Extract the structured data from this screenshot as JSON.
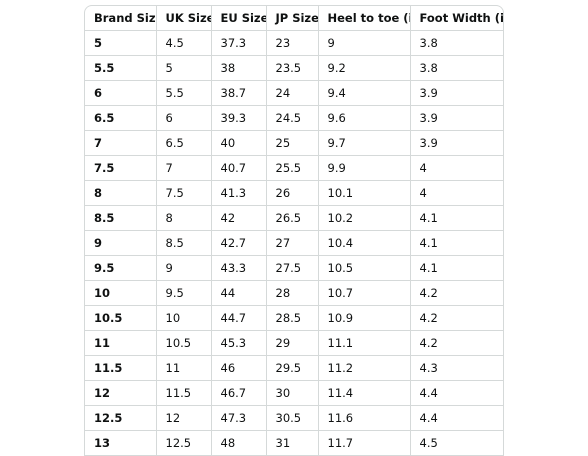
{
  "table": {
    "headers": [
      "Brand Size",
      "UK Size",
      "EU Size",
      "JP Size",
      "Heel to toe (in)",
      "Foot Width (in)"
    ],
    "rows": [
      [
        "5",
        "4.5",
        "37.3",
        "23",
        "9",
        "3.8"
      ],
      [
        "5.5",
        "5",
        "38",
        "23.5",
        "9.2",
        "3.8"
      ],
      [
        "6",
        "5.5",
        "38.7",
        "24",
        "9.4",
        "3.9"
      ],
      [
        "6.5",
        "6",
        "39.3",
        "24.5",
        "9.6",
        "3.9"
      ],
      [
        "7",
        "6.5",
        "40",
        "25",
        "9.7",
        "3.9"
      ],
      [
        "7.5",
        "7",
        "40.7",
        "25.5",
        "9.9",
        "4"
      ],
      [
        "8",
        "7.5",
        "41.3",
        "26",
        "10.1",
        "4"
      ],
      [
        "8.5",
        "8",
        "42",
        "26.5",
        "10.2",
        "4.1"
      ],
      [
        "9",
        "8.5",
        "42.7",
        "27",
        "10.4",
        "4.1"
      ],
      [
        "9.5",
        "9",
        "43.3",
        "27.5",
        "10.5",
        "4.1"
      ],
      [
        "10",
        "9.5",
        "44",
        "28",
        "10.7",
        "4.2"
      ],
      [
        "10.5",
        "10",
        "44.7",
        "28.5",
        "10.9",
        "4.2"
      ],
      [
        "11",
        "10.5",
        "45.3",
        "29",
        "11.1",
        "4.2"
      ],
      [
        "11.5",
        "11",
        "46",
        "29.5",
        "11.2",
        "4.3"
      ],
      [
        "12",
        "11.5",
        "46.7",
        "30",
        "11.4",
        "4.4"
      ],
      [
        "12.5",
        "12",
        "47.3",
        "30.5",
        "11.6",
        "4.4"
      ],
      [
        "13",
        "12.5",
        "48",
        "31",
        "11.7",
        "4.5"
      ]
    ]
  }
}
